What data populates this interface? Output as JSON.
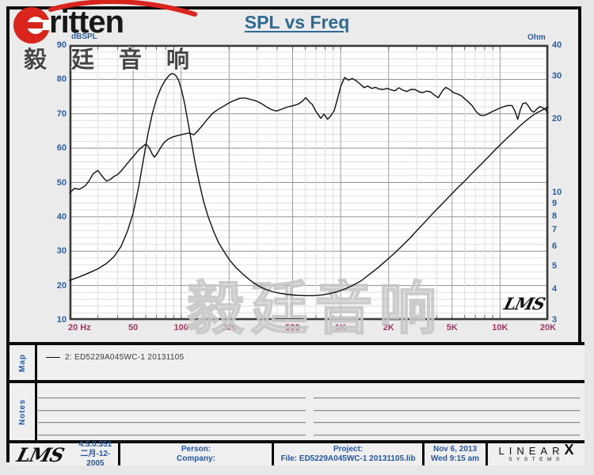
{
  "header": {
    "title": "SPL vs Freq",
    "brand_text": "ritten",
    "brand_cn": "毅廷音响"
  },
  "colors": {
    "title_blue": "#2e6b92",
    "axis_blue": "#2a5d9f",
    "freq_label_red": "#a23566",
    "brand_red": "#d9251c",
    "curve_black": "#101010",
    "watermark_gray": "#c7c7c7"
  },
  "chart_data": {
    "type": "line",
    "title": "SPL vs Freq",
    "grid": true,
    "x_axis": {
      "scale": "log",
      "min": 20,
      "max": 20000,
      "unit": "Hz",
      "tick_values": [
        20,
        50,
        100,
        200,
        500,
        1000,
        2000,
        5000,
        10000,
        20000
      ],
      "tick_labels": [
        "20  Hz",
        "50",
        "100",
        "200",
        "500",
        "1K",
        "2K",
        "5K",
        "10K",
        "20K"
      ]
    },
    "y_left": {
      "label": "dBSPL",
      "scale": "linear",
      "min": 10,
      "max": 90,
      "ticks": [
        90,
        80,
        70,
        60,
        50,
        40,
        30,
        20,
        10
      ]
    },
    "y_right": {
      "label": "Ohm",
      "scale": "log",
      "min": 3,
      "max": 40,
      "ticks": [
        40,
        30,
        20,
        10,
        9,
        8,
        7,
        6,
        5,
        4,
        3
      ]
    },
    "watermark": "毅廷音响",
    "plot_logo": "LMS",
    "series": [
      {
        "name": "2: ED5229A045WC-1  20131105 — SPL",
        "axis": "left",
        "unit": "dBSPL",
        "points": [
          [
            20,
            47
          ],
          [
            21.5,
            48.3
          ],
          [
            23,
            48
          ],
          [
            25,
            49
          ],
          [
            26.5,
            50.5
          ],
          [
            28,
            52.5
          ],
          [
            30,
            53.5
          ],
          [
            32,
            51.8
          ],
          [
            34,
            50.4
          ],
          [
            36,
            50.9
          ],
          [
            38,
            51.8
          ],
          [
            40,
            52.3
          ],
          [
            42.5,
            53.6
          ],
          [
            45,
            55
          ],
          [
            48,
            56.6
          ],
          [
            51,
            58
          ],
          [
            54,
            59.4
          ],
          [
            57,
            60.4
          ],
          [
            60,
            61.2
          ],
          [
            63,
            60.2
          ],
          [
            66,
            58.2
          ],
          [
            68,
            57.4
          ],
          [
            70.5,
            58.3
          ],
          [
            74,
            60
          ],
          [
            78,
            61.6
          ],
          [
            83,
            62.6
          ],
          [
            89,
            63.3
          ],
          [
            96,
            63.7
          ],
          [
            104,
            64.1
          ],
          [
            112,
            64.4
          ],
          [
            120,
            63.9
          ],
          [
            128,
            65.2
          ],
          [
            136,
            66.6
          ],
          [
            146,
            68.4
          ],
          [
            158,
            70.2
          ],
          [
            172,
            71.4
          ],
          [
            186,
            72.3
          ],
          [
            200,
            73.2
          ],
          [
            216,
            73.9
          ],
          [
            233,
            74.5
          ],
          [
            252,
            74.6
          ],
          [
            272,
            74.2
          ],
          [
            294,
            73.8
          ],
          [
            318,
            73
          ],
          [
            343,
            72
          ],
          [
            370,
            71.2
          ],
          [
            395,
            70.8
          ],
          [
            425,
            71.3
          ],
          [
            458,
            71.9
          ],
          [
            495,
            72.3
          ],
          [
            535,
            72.7
          ],
          [
            570,
            73.5
          ],
          [
            605,
            74.7
          ],
          [
            635,
            73.5
          ],
          [
            665,
            72.7
          ],
          [
            700,
            70.7
          ],
          [
            750,
            68.7
          ],
          [
            788,
            69.9
          ],
          [
            828,
            68.4
          ],
          [
            868,
            69.4
          ],
          [
            912,
            70.9
          ],
          [
            958,
            74.5
          ],
          [
            1005,
            78.2
          ],
          [
            1060,
            80.6
          ],
          [
            1120,
            79.8
          ],
          [
            1185,
            80.3
          ],
          [
            1255,
            79.6
          ],
          [
            1330,
            78.6
          ],
          [
            1405,
            77.6
          ],
          [
            1480,
            78.1
          ],
          [
            1565,
            77.4
          ],
          [
            1655,
            77.7
          ],
          [
            1750,
            77.2
          ],
          [
            1855,
            77.1
          ],
          [
            1960,
            77.4
          ],
          [
            2070,
            77
          ],
          [
            2190,
            76.7
          ],
          [
            2320,
            77.6
          ],
          [
            2455,
            76.9
          ],
          [
            2600,
            76.5
          ],
          [
            2750,
            77.1
          ],
          [
            2930,
            77.1
          ],
          [
            3100,
            76.4
          ],
          [
            3280,
            76.2
          ],
          [
            3460,
            76.6
          ],
          [
            3660,
            76.4
          ],
          [
            3870,
            75.5
          ],
          [
            4100,
            74.7
          ],
          [
            4340,
            76.6
          ],
          [
            4560,
            77.7
          ],
          [
            4820,
            77.1
          ],
          [
            5100,
            76.2
          ],
          [
            5400,
            75.8
          ],
          [
            5700,
            75.3
          ],
          [
            6000,
            74.4
          ],
          [
            6350,
            73.4
          ],
          [
            6700,
            72.3
          ],
          [
            7100,
            70.6
          ],
          [
            7500,
            69.6
          ],
          [
            7950,
            69.5
          ],
          [
            8400,
            70
          ],
          [
            8900,
            70.6
          ],
          [
            9400,
            71.1
          ],
          [
            10000,
            71.7
          ],
          [
            10600,
            72.1
          ],
          [
            11200,
            72.4
          ],
          [
            11900,
            72.4
          ],
          [
            12400,
            70.8
          ],
          [
            12900,
            68.4
          ],
          [
            13400,
            71.2
          ],
          [
            13900,
            73
          ],
          [
            14500,
            73.2
          ],
          [
            15100,
            72.2
          ],
          [
            15700,
            70.9
          ],
          [
            16300,
            70.5
          ],
          [
            17000,
            71.4
          ],
          [
            17800,
            72.1
          ],
          [
            18600,
            71.7
          ],
          [
            19300,
            71.2
          ],
          [
            20000,
            70.2
          ]
        ]
      },
      {
        "name": "2: ED5229A045WC-1  20131105 — Impedance",
        "axis": "right",
        "unit": "Ohm",
        "points": [
          [
            20,
            4.35
          ],
          [
            23,
            4.5
          ],
          [
            26,
            4.65
          ],
          [
            30,
            4.85
          ],
          [
            34,
            5.1
          ],
          [
            38,
            5.45
          ],
          [
            42,
            6
          ],
          [
            46,
            6.9
          ],
          [
            50,
            8.2
          ],
          [
            54,
            10.4
          ],
          [
            58,
            13.6
          ],
          [
            62,
            17.4
          ],
          [
            66,
            21
          ],
          [
            70,
            24
          ],
          [
            75,
            26.9
          ],
          [
            80,
            28.9
          ],
          [
            85,
            30.3
          ],
          [
            88,
            30.6
          ],
          [
            92,
            30.2
          ],
          [
            96,
            28.9
          ],
          [
            100,
            26.6
          ],
          [
            105,
            23.2
          ],
          [
            110,
            19.6
          ],
          [
            116,
            16.1
          ],
          [
            122,
            13.3
          ],
          [
            130,
            10.9
          ],
          [
            138,
            9.2
          ],
          [
            148,
            7.9
          ],
          [
            160,
            6.9
          ],
          [
            172,
            6.2
          ],
          [
            186,
            5.7
          ],
          [
            200,
            5.3
          ],
          [
            220,
            4.92
          ],
          [
            245,
            4.6
          ],
          [
            270,
            4.36
          ],
          [
            300,
            4.16
          ],
          [
            335,
            4.01
          ],
          [
            375,
            3.91
          ],
          [
            420,
            3.85
          ],
          [
            470,
            3.81
          ],
          [
            530,
            3.78
          ],
          [
            600,
            3.77
          ],
          [
            680,
            3.77
          ],
          [
            760,
            3.79
          ],
          [
            850,
            3.84
          ],
          [
            950,
            3.91
          ],
          [
            1060,
            4.01
          ],
          [
            1200,
            4.16
          ],
          [
            1350,
            4.34
          ],
          [
            1500,
            4.58
          ],
          [
            1700,
            4.88
          ],
          [
            1900,
            5.2
          ],
          [
            2150,
            5.58
          ],
          [
            2400,
            5.98
          ],
          [
            2700,
            6.45
          ],
          [
            3000,
            6.95
          ],
          [
            3400,
            7.58
          ],
          [
            3800,
            8.2
          ],
          [
            4300,
            8.9
          ],
          [
            4800,
            9.6
          ],
          [
            5400,
            10.4
          ],
          [
            6000,
            11.1
          ],
          [
            6800,
            12.1
          ],
          [
            7600,
            13
          ],
          [
            8500,
            14
          ],
          [
            9500,
            15.1
          ],
          [
            10600,
            16.2
          ],
          [
            11800,
            17.3
          ],
          [
            13200,
            18.6
          ],
          [
            14800,
            19.8
          ],
          [
            16500,
            20.9
          ],
          [
            18200,
            21.6
          ],
          [
            20000,
            22.3
          ]
        ]
      }
    ]
  },
  "map_panel": {
    "label": "Map",
    "legend": {
      "text": "2: ED5229A045WC-1  20131105"
    }
  },
  "notes_panel": {
    "label": "Notes",
    "lines": 4
  },
  "footer": {
    "lms_logo": "LMS",
    "version": "4.5.0.351",
    "version_date": "二月-12-2005",
    "person_label": "Person:",
    "company_label": "Company:",
    "project_label": "Project:",
    "file_label": "File: ED5229A045WC-1 20131105.lib",
    "date": "Nov  6, 2013",
    "time": "Wed  9:15 am",
    "linearx_letters": "LINEAR",
    "linearx_x": "X",
    "linearx_sub": "SYSTEMS"
  }
}
